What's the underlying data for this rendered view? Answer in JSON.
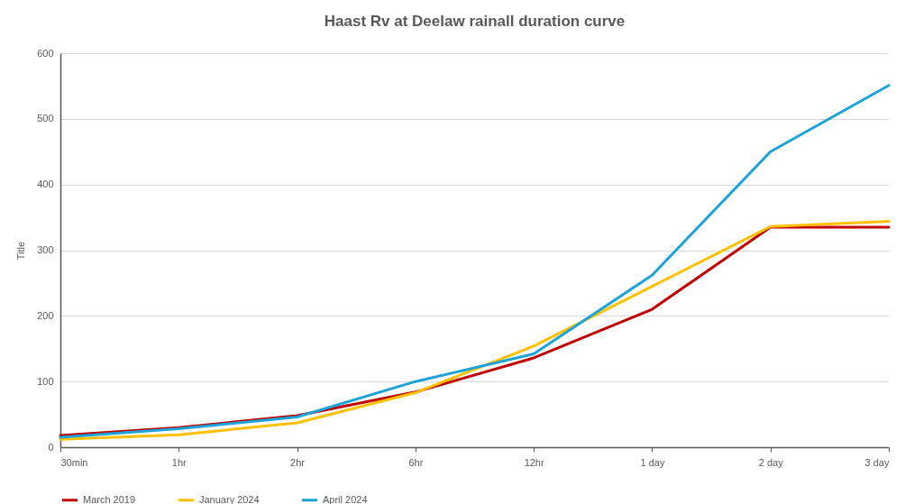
{
  "chart_data": {
    "type": "line",
    "title": "Haast Rv at Deelaw rainall duration curve",
    "ylabel": "Title",
    "categories": [
      "30min",
      "1hr",
      "2hr",
      "6hr",
      "12hr",
      "1 day",
      "2 day",
      "3 day"
    ],
    "series": [
      {
        "name": "March 2019",
        "color": "#c00000",
        "values": [
          18,
          30,
          48,
          84,
          136,
          210,
          335,
          335
        ]
      },
      {
        "name": "January 2024",
        "color": "#ffc000",
        "values": [
          12,
          19,
          37,
          83,
          154,
          245,
          336,
          344
        ]
      },
      {
        "name": "April 2024",
        "color": "#1ca3d8",
        "values": [
          15,
          28,
          46,
          100,
          142,
          262,
          450,
          551
        ]
      }
    ],
    "ylim": [
      0,
      600
    ],
    "yticks": [
      0,
      100,
      200,
      300,
      400,
      500,
      600
    ],
    "grid": "y",
    "legend": "bottom",
    "line_style": "solid",
    "marker": "none"
  }
}
